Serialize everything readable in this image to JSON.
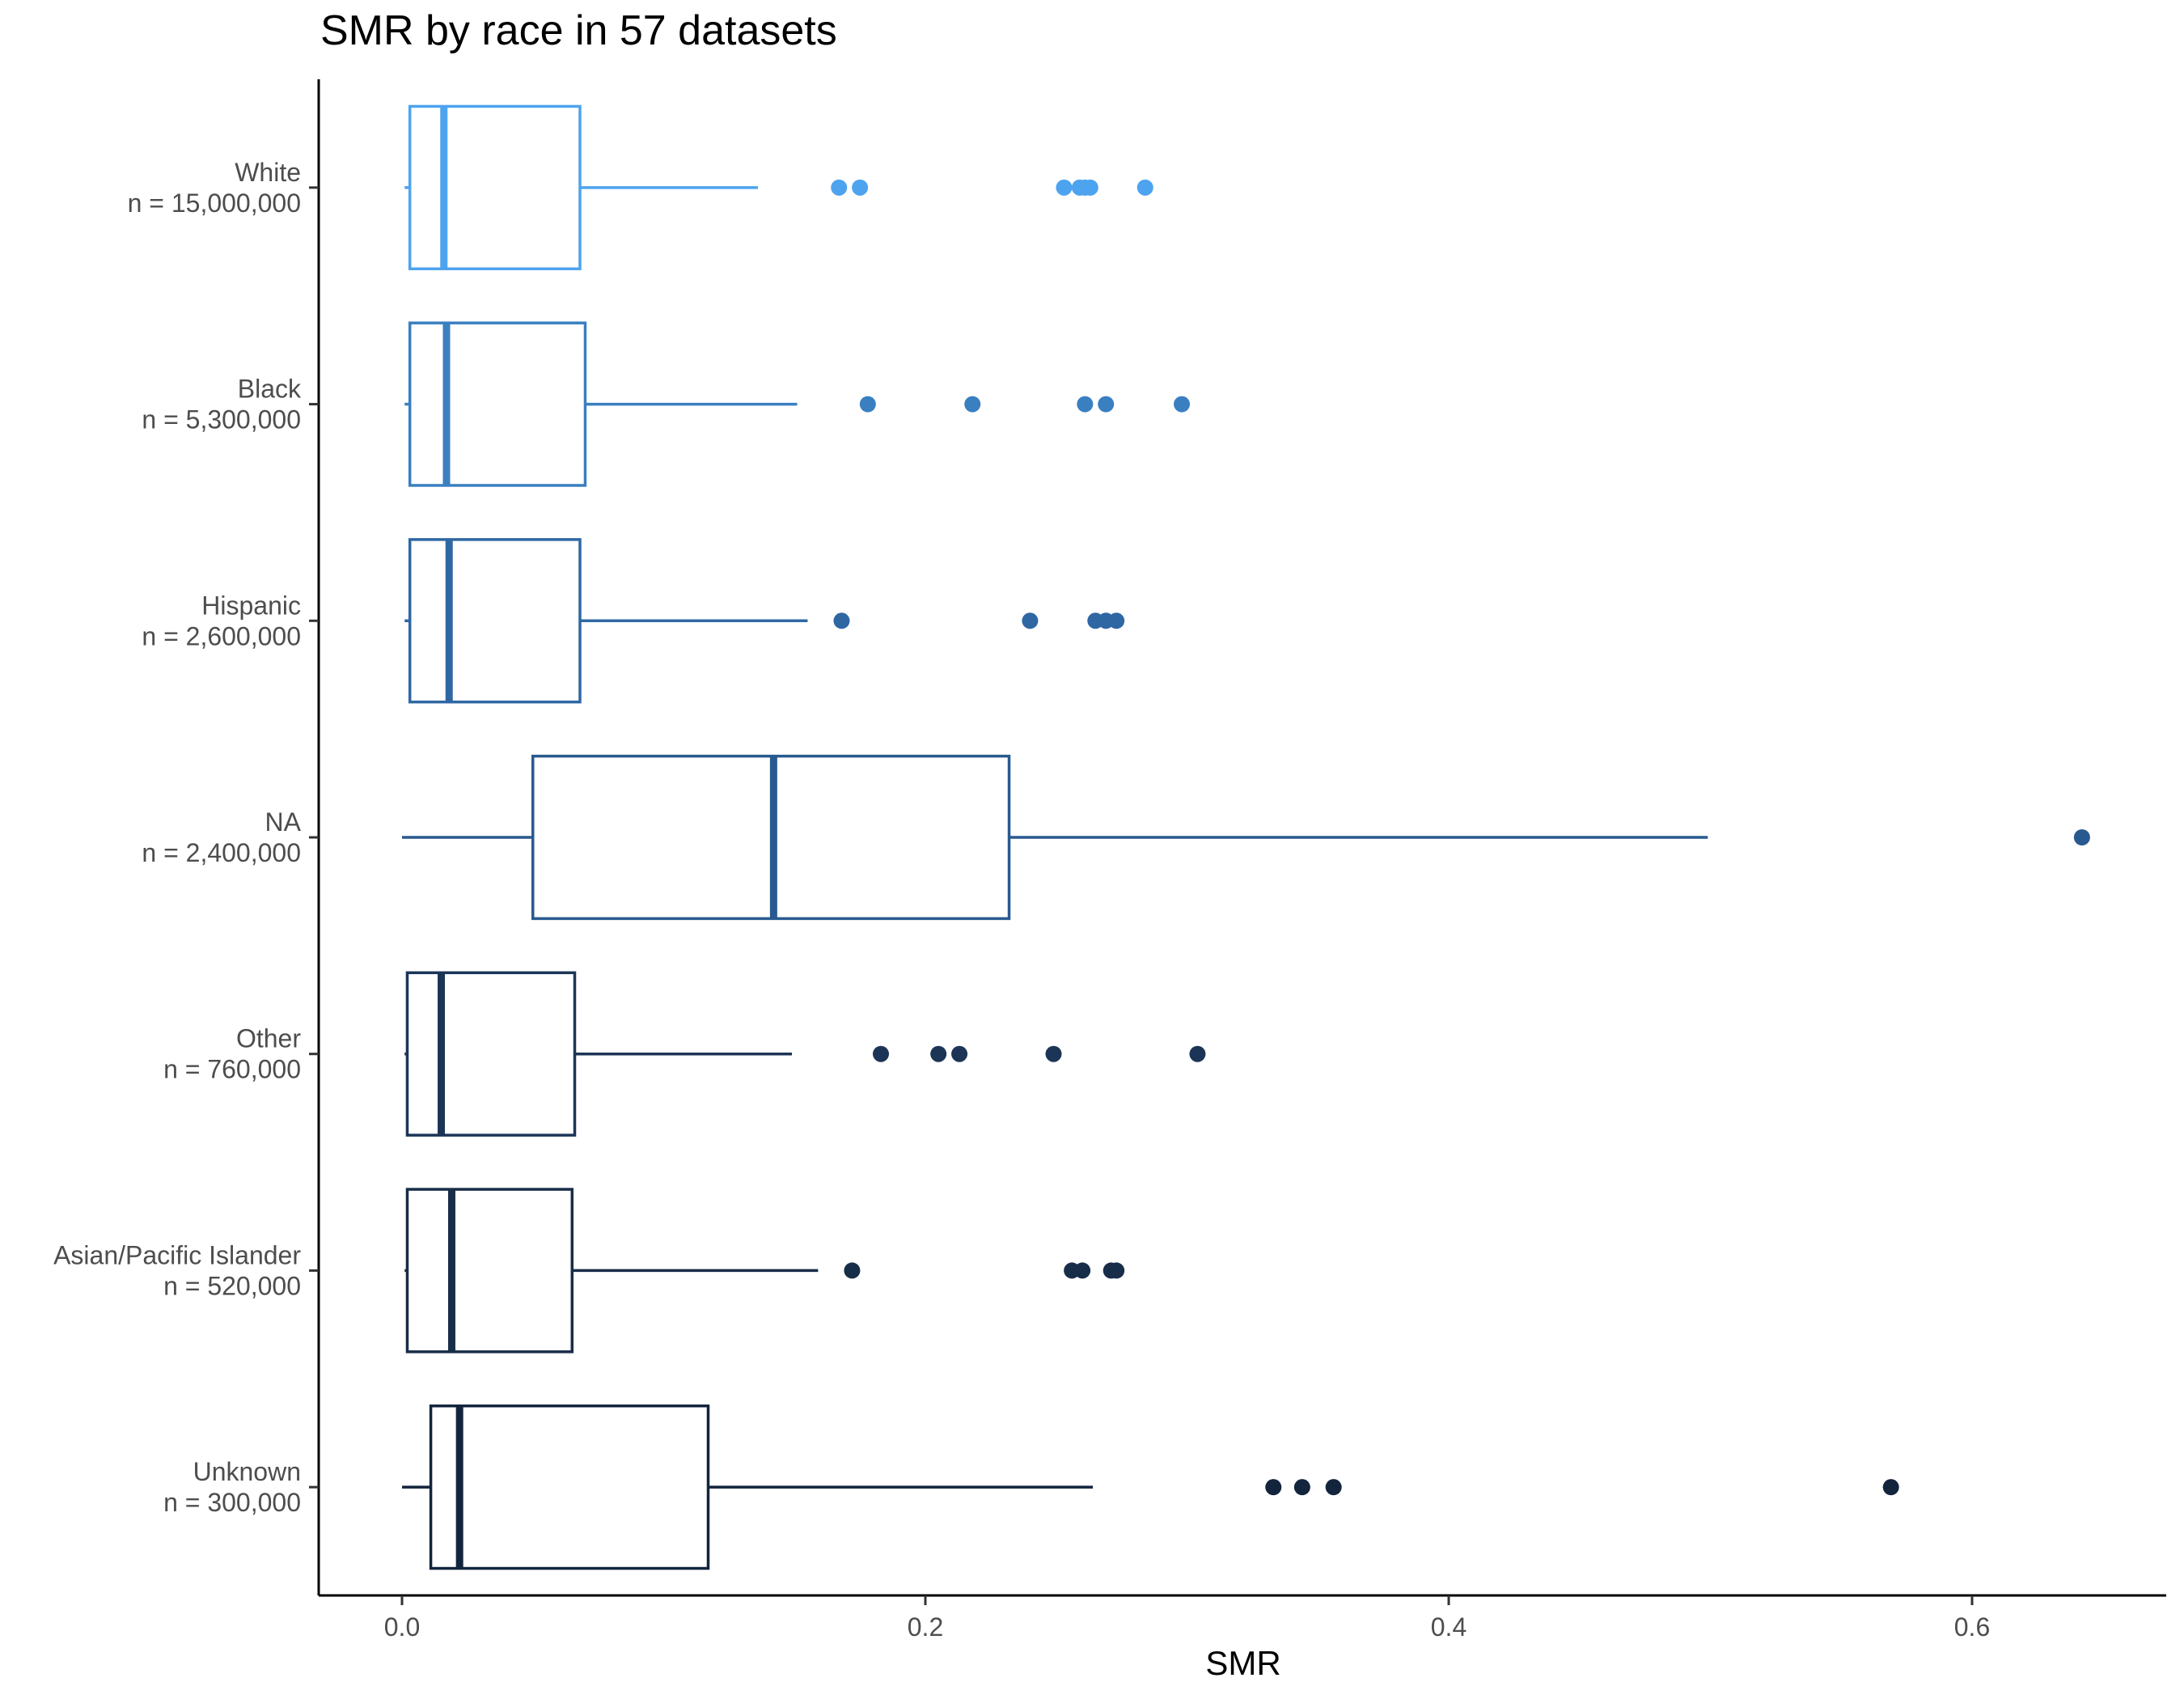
{
  "chart_data": {
    "type": "boxplot",
    "orientation": "horizontal",
    "title": "SMR by race in 57 datasets",
    "xlabel": "SMR",
    "ylabel": "",
    "xlim": [
      -0.08,
      0.67
    ],
    "x_ticks": [
      0.0,
      0.2,
      0.4,
      0.6
    ],
    "x_tick_labels": [
      "0.0",
      "0.2",
      "0.4",
      "0.6"
    ],
    "grid": false,
    "legend": "none",
    "categories": [
      {
        "label": "White",
        "n_label": "n = 15,000,000",
        "color": "#4EA3EF",
        "whisker_low": 0.001,
        "q1": 0.003,
        "median": 0.016,
        "q3": 0.068,
        "whisker_high": 0.136,
        "outliers": [
          0.167,
          0.175,
          0.253,
          0.259,
          0.261,
          0.263,
          0.284
        ]
      },
      {
        "label": "Black",
        "n_label": "n = 5,300,000",
        "color": "#3A7FC0",
        "whisker_low": 0.001,
        "q1": 0.003,
        "median": 0.017,
        "q3": 0.07,
        "whisker_high": 0.151,
        "outliers": [
          0.178,
          0.218,
          0.261,
          0.269,
          0.298
        ]
      },
      {
        "label": "Hispanic",
        "n_label": "n = 2,600,000",
        "color": "#2F67A3",
        "whisker_low": 0.001,
        "q1": 0.003,
        "median": 0.018,
        "q3": 0.068,
        "whisker_high": 0.155,
        "outliers": [
          0.168,
          0.24,
          0.265,
          0.269,
          0.273
        ]
      },
      {
        "label": "NA",
        "n_label": "n = 2,400,000",
        "color": "#285A8F",
        "whisker_low": 0.0,
        "q1": 0.05,
        "median": 0.142,
        "q3": 0.232,
        "whisker_high": 0.499,
        "outliers": [
          0.642
        ]
      },
      {
        "label": "Other",
        "n_label": "n = 760,000",
        "color": "#1C3557",
        "whisker_low": 0.001,
        "q1": 0.002,
        "median": 0.015,
        "q3": 0.066,
        "whisker_high": 0.149,
        "outliers": [
          0.183,
          0.205,
          0.213,
          0.249,
          0.304
        ]
      },
      {
        "label": "Asian/Pacific Islander",
        "n_label": "n = 520,000",
        "color": "#182D48",
        "whisker_low": 0.001,
        "q1": 0.002,
        "median": 0.019,
        "q3": 0.065,
        "whisker_high": 0.159,
        "outliers": [
          0.172,
          0.256,
          0.26,
          0.271,
          0.273
        ]
      },
      {
        "label": "Unknown",
        "n_label": "n = 300,000",
        "color": "#13253D",
        "whisker_low": 0.0,
        "q1": 0.011,
        "median": 0.022,
        "q3": 0.117,
        "whisker_high": 0.264,
        "outliers": [
          0.333,
          0.344,
          0.356,
          0.569
        ]
      }
    ]
  }
}
